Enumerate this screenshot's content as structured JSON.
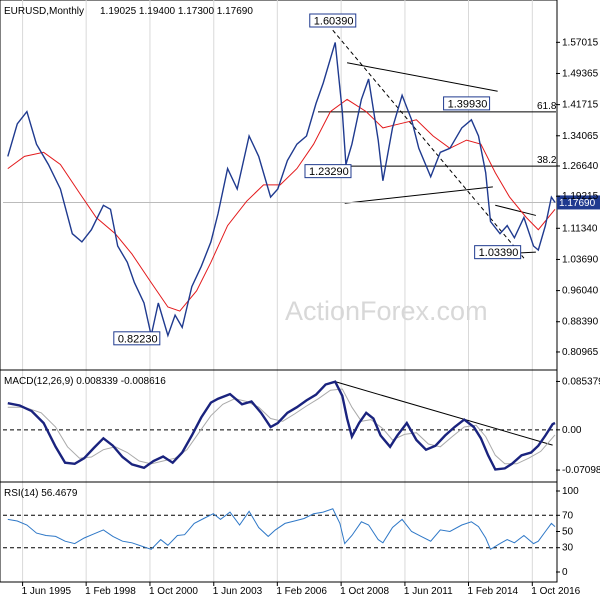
{
  "chart_data": {
    "type": "line",
    "symbol_label": "EURUSD,Monthly",
    "ohlc_text": "1.19025 1.19400 1.17300 1.17690",
    "watermark": "ActionForex.com",
    "x_labels": [
      "1 Jun 1995",
      "1 Feb 1998",
      "1 Oct 2000",
      "1 Jun 2003",
      "1 Feb 2006",
      "1 Oct 2008",
      "1 Jun 2011",
      "1 Feb 2014",
      "1 Oct 2016"
    ],
    "x_dates": [
      1995.42,
      1998.08,
      2000.75,
      2003.42,
      2006.08,
      2008.75,
      2011.42,
      2014.08,
      2016.75
    ],
    "x_range": [
      1994.6,
      2017.7
    ],
    "price": {
      "ylim": [
        0.785,
        1.625
      ],
      "yticks": [
        "1.57015",
        "1.49365",
        "1.41715",
        "1.34065",
        "1.26640",
        "1.19215",
        "1.11340",
        "1.03690",
        "0.96040",
        "0.88390",
        "0.80965"
      ],
      "ytick_values": [
        1.57015,
        1.49365,
        1.41715,
        1.34065,
        1.2664,
        1.19215,
        1.1134,
        1.0369,
        0.9604,
        0.8839,
        0.80965
      ],
      "levels": [
        {
          "label": "1.60390",
          "x": 2008.4,
          "y": 1.6039
        },
        {
          "label": "1.39930",
          "x": 2014.0,
          "y": 1.3993
        },
        {
          "label": "1.23290",
          "x": 2008.2,
          "y": 1.2329
        },
        {
          "label": "1.03390",
          "x": 2015.3,
          "y": 1.0339
        },
        {
          "label": "0.82230",
          "x": 2000.2,
          "y": 0.8223
        }
      ],
      "fib": [
        {
          "label": "61.8",
          "y": 1.3993
        },
        {
          "label": "38.2",
          "y": 1.266
        }
      ],
      "current": {
        "label": "1.17690",
        "y": 1.1769
      },
      "close_series": [
        [
          1994.8,
          1.29
        ],
        [
          1995.2,
          1.37
        ],
        [
          1995.6,
          1.4
        ],
        [
          1996.0,
          1.32
        ],
        [
          1996.5,
          1.27
        ],
        [
          1997.0,
          1.21
        ],
        [
          1997.5,
          1.1
        ],
        [
          1997.9,
          1.08
        ],
        [
          1998.3,
          1.11
        ],
        [
          1998.8,
          1.17
        ],
        [
          1999.1,
          1.16
        ],
        [
          1999.4,
          1.07
        ],
        [
          1999.8,
          1.03
        ],
        [
          2000.1,
          0.98
        ],
        [
          2000.5,
          0.93
        ],
        [
          2000.8,
          0.85
        ],
        [
          2001.1,
          0.93
        ],
        [
          2001.5,
          0.85
        ],
        [
          2001.8,
          0.9
        ],
        [
          2002.1,
          0.87
        ],
        [
          2002.5,
          0.97
        ],
        [
          2002.9,
          1.02
        ],
        [
          2003.3,
          1.08
        ],
        [
          2003.6,
          1.15
        ],
        [
          2004.0,
          1.26
        ],
        [
          2004.4,
          1.21
        ],
        [
          2004.9,
          1.34
        ],
        [
          2005.3,
          1.29
        ],
        [
          2005.8,
          1.19
        ],
        [
          2006.1,
          1.21
        ],
        [
          2006.5,
          1.28
        ],
        [
          2006.9,
          1.32
        ],
        [
          2007.3,
          1.34
        ],
        [
          2007.7,
          1.42
        ],
        [
          2008.0,
          1.47
        ],
        [
          2008.5,
          1.57
        ],
        [
          2008.8,
          1.4
        ],
        [
          2008.95,
          1.27
        ],
        [
          2009.2,
          1.32
        ],
        [
          2009.6,
          1.43
        ],
        [
          2009.9,
          1.48
        ],
        [
          2010.3,
          1.33
        ],
        [
          2010.5,
          1.23
        ],
        [
          2010.9,
          1.36
        ],
        [
          2011.3,
          1.44
        ],
        [
          2011.7,
          1.38
        ],
        [
          2012.0,
          1.31
        ],
        [
          2012.5,
          1.24
        ],
        [
          2012.9,
          1.3
        ],
        [
          2013.3,
          1.31
        ],
        [
          2013.8,
          1.36
        ],
        [
          2014.2,
          1.38
        ],
        [
          2014.5,
          1.34
        ],
        [
          2014.8,
          1.25
        ],
        [
          2015.0,
          1.13
        ],
        [
          2015.4,
          1.1
        ],
        [
          2015.7,
          1.12
        ],
        [
          2016.0,
          1.09
        ],
        [
          2016.4,
          1.14
        ],
        [
          2016.8,
          1.07
        ],
        [
          2017.0,
          1.06
        ],
        [
          2017.3,
          1.12
        ],
        [
          2017.55,
          1.19
        ],
        [
          2017.7,
          1.1769
        ]
      ],
      "ma_series": [
        [
          1994.8,
          1.26
        ],
        [
          1995.5,
          1.29
        ],
        [
          1996.3,
          1.3
        ],
        [
          1997.0,
          1.27
        ],
        [
          1997.8,
          1.2
        ],
        [
          1998.5,
          1.14
        ],
        [
          1999.3,
          1.1
        ],
        [
          2000.0,
          1.05
        ],
        [
          2000.8,
          0.98
        ],
        [
          2001.5,
          0.92
        ],
        [
          2002.0,
          0.91
        ],
        [
          2002.7,
          0.96
        ],
        [
          2003.3,
          1.03
        ],
        [
          2004.0,
          1.12
        ],
        [
          2004.8,
          1.18
        ],
        [
          2005.5,
          1.22
        ],
        [
          2006.2,
          1.22
        ],
        [
          2006.9,
          1.26
        ],
        [
          2007.6,
          1.32
        ],
        [
          2008.3,
          1.4
        ],
        [
          2009.0,
          1.43
        ],
        [
          2009.8,
          1.4
        ],
        [
          2010.5,
          1.36
        ],
        [
          2011.2,
          1.37
        ],
        [
          2011.9,
          1.38
        ],
        [
          2012.6,
          1.34
        ],
        [
          2013.3,
          1.31
        ],
        [
          2014.0,
          1.33
        ],
        [
          2014.6,
          1.32
        ],
        [
          2015.2,
          1.25
        ],
        [
          2015.8,
          1.19
        ],
        [
          2016.5,
          1.14
        ],
        [
          2017.0,
          1.11
        ],
        [
          2017.7,
          1.16
        ]
      ]
    },
    "macd": {
      "label": "MACD(12,26,9) 0.008339 -0.008616",
      "ylim": [
        -0.085,
        0.095
      ],
      "yticks": [
        "0.085379",
        "0.00",
        "-0.070989"
      ],
      "ytick_values": [
        0.085379,
        0.0,
        -0.070989
      ],
      "macd_series": [
        [
          1994.8,
          0.047
        ],
        [
          1995.3,
          0.043
        ],
        [
          1995.8,
          0.033
        ],
        [
          1996.3,
          0.012
        ],
        [
          1996.8,
          -0.03
        ],
        [
          1997.2,
          -0.058
        ],
        [
          1997.6,
          -0.06
        ],
        [
          1998.0,
          -0.05
        ],
        [
          1998.4,
          -0.032
        ],
        [
          1998.8,
          -0.015
        ],
        [
          1999.2,
          -0.028
        ],
        [
          1999.6,
          -0.048
        ],
        [
          2000.0,
          -0.061
        ],
        [
          2000.5,
          -0.067
        ],
        [
          2000.9,
          -0.055
        ],
        [
          2001.3,
          -0.047
        ],
        [
          2001.7,
          -0.058
        ],
        [
          2002.1,
          -0.04
        ],
        [
          2002.5,
          -0.01
        ],
        [
          2002.9,
          0.022
        ],
        [
          2003.3,
          0.048
        ],
        [
          2003.6,
          0.055
        ],
        [
          2004.1,
          0.063
        ],
        [
          2004.6,
          0.045
        ],
        [
          2005.0,
          0.05
        ],
        [
          2005.4,
          0.03
        ],
        [
          2005.8,
          0.005
        ],
        [
          2006.1,
          0.012
        ],
        [
          2006.5,
          0.03
        ],
        [
          2006.9,
          0.04
        ],
        [
          2007.3,
          0.052
        ],
        [
          2007.7,
          0.062
        ],
        [
          2008.1,
          0.08
        ],
        [
          2008.5,
          0.085
        ],
        [
          2008.8,
          0.06
        ],
        [
          2009.0,
          0.02
        ],
        [
          2009.2,
          -0.012
        ],
        [
          2009.5,
          0.012
        ],
        [
          2009.8,
          0.03
        ],
        [
          2010.1,
          0.02
        ],
        [
          2010.4,
          -0.01
        ],
        [
          2010.8,
          -0.03
        ],
        [
          2011.1,
          -0.01
        ],
        [
          2011.5,
          0.012
        ],
        [
          2011.9,
          -0.018
        ],
        [
          2012.3,
          -0.035
        ],
        [
          2012.7,
          -0.028
        ],
        [
          2013.1,
          -0.01
        ],
        [
          2013.5,
          0.005
        ],
        [
          2013.9,
          0.018
        ],
        [
          2014.3,
          0.005
        ],
        [
          2014.6,
          -0.015
        ],
        [
          2014.9,
          -0.045
        ],
        [
          2015.2,
          -0.07
        ],
        [
          2015.6,
          -0.068
        ],
        [
          2015.9,
          -0.06
        ],
        [
          2016.3,
          -0.045
        ],
        [
          2016.7,
          -0.04
        ],
        [
          2017.0,
          -0.028
        ],
        [
          2017.3,
          -0.01
        ],
        [
          2017.6,
          0.01
        ],
        [
          2017.7,
          0.012
        ]
      ],
      "signal_series": [
        [
          1994.8,
          0.04
        ],
        [
          1995.5,
          0.04
        ],
        [
          1996.2,
          0.03
        ],
        [
          1996.8,
          0.005
        ],
        [
          1997.3,
          -0.03
        ],
        [
          1997.8,
          -0.05
        ],
        [
          1998.3,
          -0.048
        ],
        [
          1998.8,
          -0.035
        ],
        [
          1999.3,
          -0.03
        ],
        [
          1999.8,
          -0.04
        ],
        [
          2000.3,
          -0.055
        ],
        [
          2000.8,
          -0.06
        ],
        [
          2001.3,
          -0.055
        ],
        [
          2001.8,
          -0.05
        ],
        [
          2002.3,
          -0.035
        ],
        [
          2002.8,
          -0.005
        ],
        [
          2003.3,
          0.025
        ],
        [
          2003.8,
          0.045
        ],
        [
          2004.3,
          0.055
        ],
        [
          2004.8,
          0.05
        ],
        [
          2005.3,
          0.04
        ],
        [
          2005.8,
          0.02
        ],
        [
          2006.3,
          0.015
        ],
        [
          2006.8,
          0.028
        ],
        [
          2007.3,
          0.042
        ],
        [
          2007.8,
          0.055
        ],
        [
          2008.3,
          0.07
        ],
        [
          2008.8,
          0.072
        ],
        [
          2009.2,
          0.04
        ],
        [
          2009.6,
          0.015
        ],
        [
          2010.0,
          0.018
        ],
        [
          2010.5,
          0.002
        ],
        [
          2010.9,
          -0.018
        ],
        [
          2011.4,
          -0.008
        ],
        [
          2011.9,
          -0.005
        ],
        [
          2012.4,
          -0.025
        ],
        [
          2012.9,
          -0.03
        ],
        [
          2013.4,
          -0.012
        ],
        [
          2013.9,
          0.005
        ],
        [
          2014.4,
          0.008
        ],
        [
          2014.8,
          -0.012
        ],
        [
          2015.2,
          -0.045
        ],
        [
          2015.6,
          -0.06
        ],
        [
          2016.1,
          -0.06
        ],
        [
          2016.6,
          -0.05
        ],
        [
          2017.1,
          -0.038
        ],
        [
          2017.7,
          -0.009
        ]
      ]
    },
    "rsi": {
      "label": "RSI(14) 56.4679",
      "ylim": [
        0,
        100
      ],
      "yticks": [
        "100",
        "70",
        "50",
        "30",
        "0"
      ],
      "ytick_values": [
        100,
        70,
        50,
        30,
        0
      ],
      "series": [
        [
          1994.8,
          65
        ],
        [
          1995.2,
          63
        ],
        [
          1995.6,
          58
        ],
        [
          1996.0,
          48
        ],
        [
          1996.4,
          45
        ],
        [
          1996.8,
          44
        ],
        [
          1997.2,
          38
        ],
        [
          1997.6,
          35
        ],
        [
          1998.0,
          42
        ],
        [
          1998.4,
          47
        ],
        [
          1998.8,
          52
        ],
        [
          1999.2,
          44
        ],
        [
          1999.6,
          38
        ],
        [
          2000.0,
          36
        ],
        [
          2000.4,
          32
        ],
        [
          2000.8,
          28
        ],
        [
          2001.2,
          40
        ],
        [
          2001.5,
          33
        ],
        [
          2001.9,
          45
        ],
        [
          2002.2,
          46
        ],
        [
          2002.6,
          60
        ],
        [
          2003.0,
          66
        ],
        [
          2003.4,
          72
        ],
        [
          2003.7,
          65
        ],
        [
          2004.1,
          74
        ],
        [
          2004.5,
          58
        ],
        [
          2004.9,
          75
        ],
        [
          2005.3,
          55
        ],
        [
          2005.7,
          44
        ],
        [
          2006.0,
          52
        ],
        [
          2006.4,
          60
        ],
        [
          2006.8,
          63
        ],
        [
          2007.2,
          66
        ],
        [
          2007.6,
          72
        ],
        [
          2008.0,
          74
        ],
        [
          2008.4,
          78
        ],
        [
          2008.7,
          60
        ],
        [
          2008.9,
          35
        ],
        [
          2009.2,
          45
        ],
        [
          2009.6,
          62
        ],
        [
          2009.9,
          58
        ],
        [
          2010.3,
          40
        ],
        [
          2010.5,
          36
        ],
        [
          2010.9,
          55
        ],
        [
          2011.3,
          65
        ],
        [
          2011.7,
          50
        ],
        [
          2012.1,
          44
        ],
        [
          2012.5,
          38
        ],
        [
          2012.9,
          52
        ],
        [
          2013.3,
          50
        ],
        [
          2013.8,
          58
        ],
        [
          2014.2,
          62
        ],
        [
          2014.5,
          56
        ],
        [
          2014.8,
          42
        ],
        [
          2015.0,
          28
        ],
        [
          2015.4,
          35
        ],
        [
          2015.7,
          40
        ],
        [
          2016.0,
          36
        ],
        [
          2016.4,
          45
        ],
        [
          2016.8,
          35
        ],
        [
          2017.0,
          38
        ],
        [
          2017.3,
          50
        ],
        [
          2017.55,
          60
        ],
        [
          2017.7,
          56
        ]
      ]
    },
    "colors": {
      "price": "#1f3a8f",
      "ma": "#e31a1c",
      "macd": "#1a237e",
      "signal": "#aaaaaa",
      "rsi": "#2f78c7",
      "trendline": "#000000"
    }
  }
}
